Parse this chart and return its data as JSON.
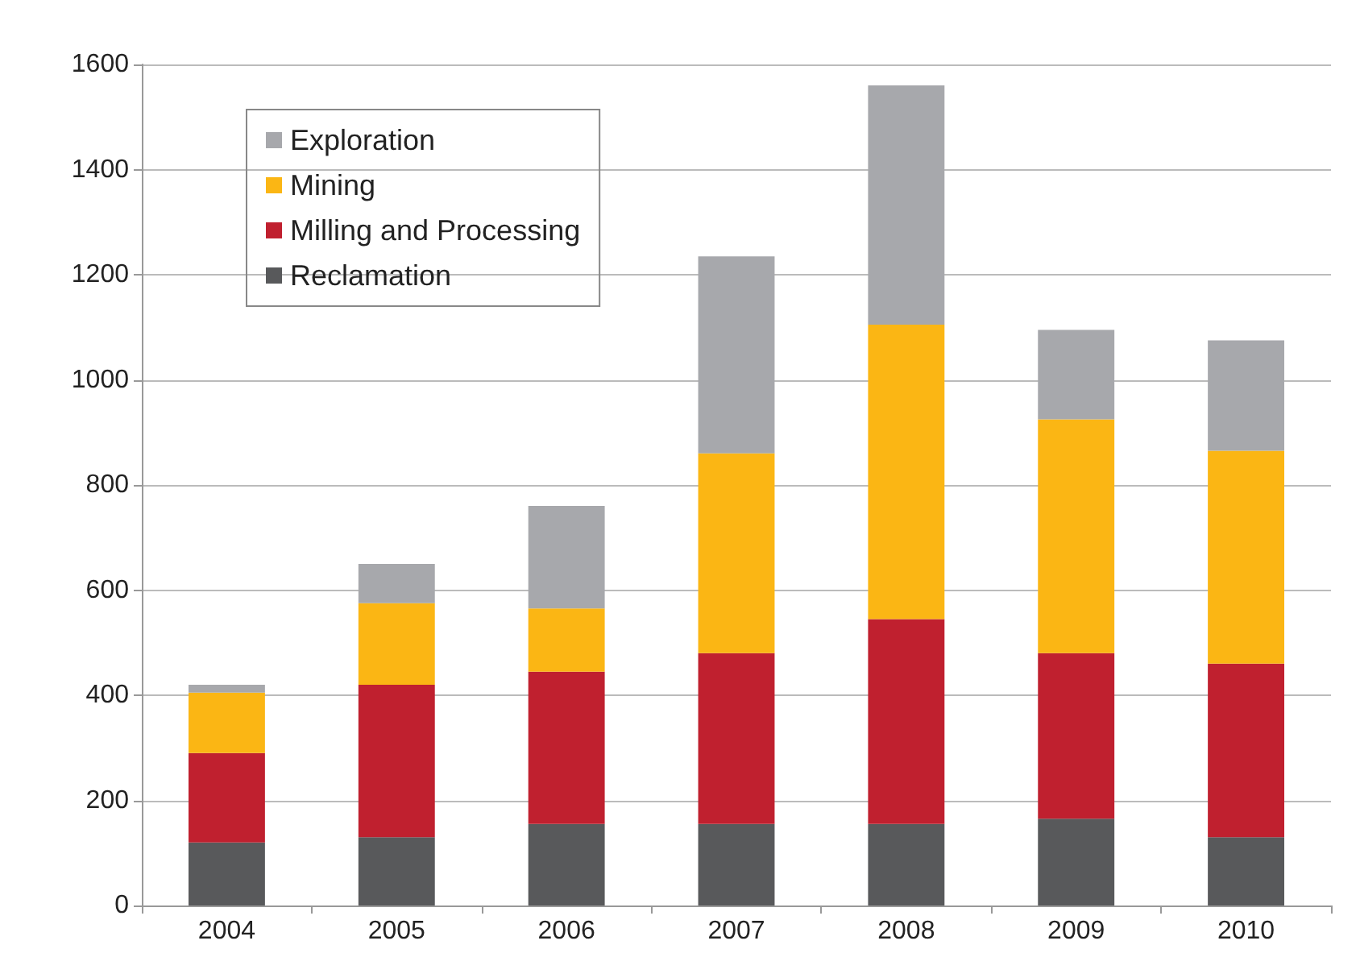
{
  "chart_data": {
    "type": "bar",
    "stacked": true,
    "categories": [
      "2004",
      "2005",
      "2006",
      "2007",
      "2008",
      "2009",
      "2010"
    ],
    "series": [
      {
        "name": "Reclamation",
        "color": "#58595b",
        "values": [
          120,
          130,
          155,
          155,
          155,
          165,
          130
        ]
      },
      {
        "name": "Milling and Processing",
        "color": "#c0202f",
        "values": [
          170,
          290,
          290,
          325,
          390,
          315,
          330
        ]
      },
      {
        "name": "Mining",
        "color": "#fbb614",
        "values": [
          115,
          155,
          120,
          380,
          560,
          445,
          405
        ]
      },
      {
        "name": "Exploration",
        "color": "#a7a8ac",
        "values": [
          15,
          75,
          195,
          375,
          455,
          170,
          210
        ]
      }
    ],
    "ylim": [
      0,
      1600
    ],
    "yticks": [
      0,
      200,
      400,
      600,
      800,
      1000,
      1200,
      1400,
      1600
    ],
    "grid": "y",
    "legend": "top left"
  }
}
